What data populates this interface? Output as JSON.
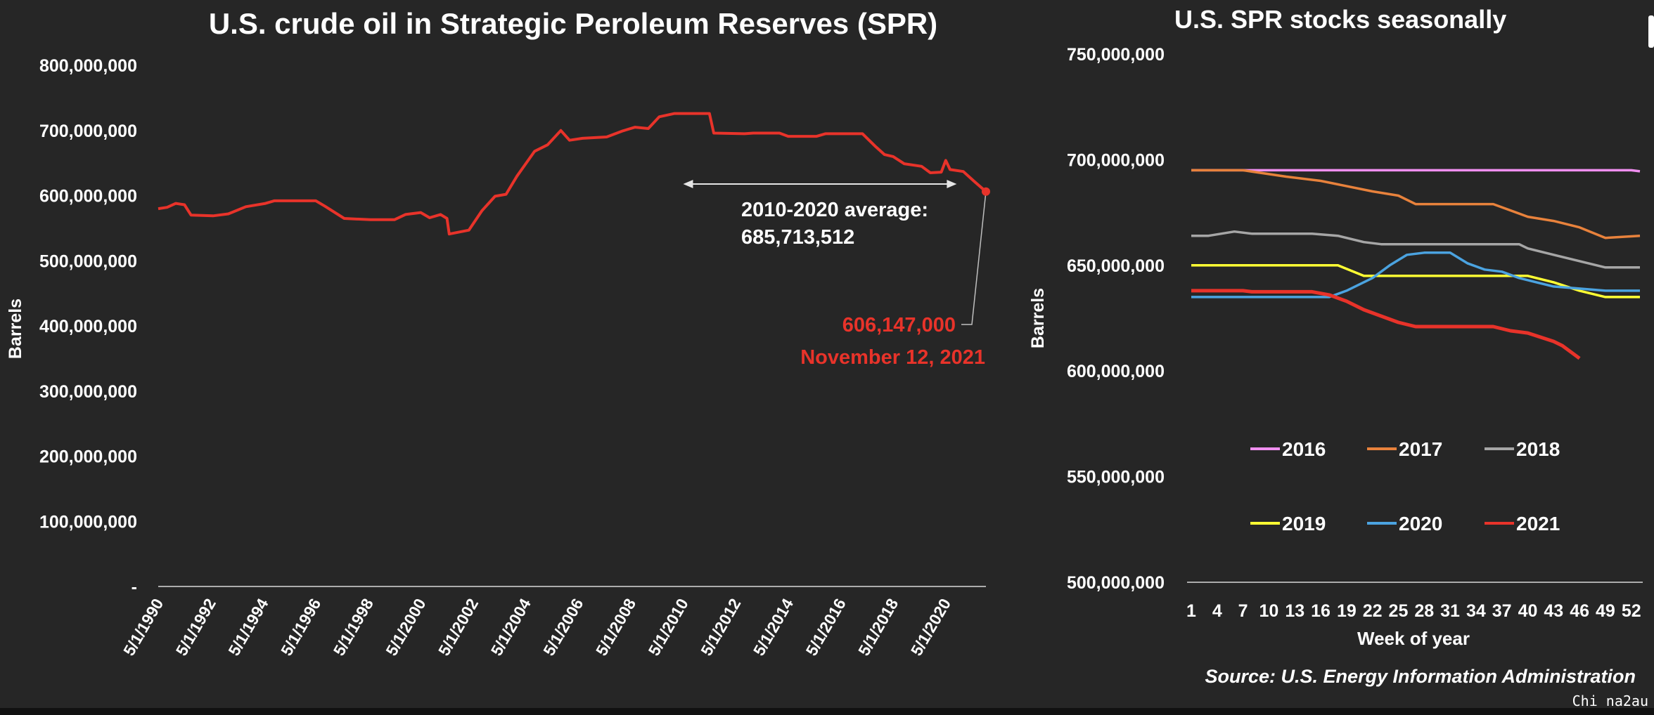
{
  "watermark": "Chi na2au",
  "source_note": "Source: U.S. Energy Information Administration",
  "chart_data": [
    {
      "type": "line",
      "title": "U.S. crude oil in Strategic Peroleum Reserves (SPR)",
      "ylabel": "Barrels",
      "xlabel": "",
      "ylim": [
        0,
        800000000
      ],
      "y_ticks": [
        0,
        100000000,
        200000000,
        300000000,
        400000000,
        500000000,
        600000000,
        700000000,
        800000000
      ],
      "y_tick_labels": [
        "-",
        "100,000,000",
        "200,000,000",
        "300,000,000",
        "400,000,000",
        "500,000,000",
        "600,000,000",
        "700,000,000",
        "800,000,000"
      ],
      "x_range": [
        "1990-05-01",
        "2021-11-12"
      ],
      "x_tick_labels": [
        "5/1/1990",
        "5/1/1992",
        "5/1/1994",
        "5/1/1996",
        "5/1/1998",
        "5/1/2000",
        "5/1/2002",
        "5/1/2004",
        "5/1/2006",
        "5/1/2008",
        "5/1/2010",
        "5/1/2012",
        "5/1/2014",
        "5/1/2016",
        "5/1/2018",
        "5/1/2020"
      ],
      "line_color": "#e8332a",
      "grid": false,
      "series": [
        {
          "color": "#e8332a",
          "points": [
            [
              "1990-05-01",
              580000000
            ],
            [
              "1990-09-01",
              582000000
            ],
            [
              "1991-01-01",
              588000000
            ],
            [
              "1991-05-01",
              586000000
            ],
            [
              "1991-08-01",
              570000000
            ],
            [
              "1992-06-01",
              569000000
            ],
            [
              "1993-01-01",
              572000000
            ],
            [
              "1993-09-01",
              583000000
            ],
            [
              "1994-06-01",
              588000000
            ],
            [
              "1994-10-01",
              592000000
            ],
            [
              "1995-06-01",
              592000000
            ],
            [
              "1996-05-01",
              592000000
            ],
            [
              "1996-09-01",
              584000000
            ],
            [
              "1997-06-01",
              565000000
            ],
            [
              "1998-06-01",
              563000000
            ],
            [
              "1999-05-01",
              563000000
            ],
            [
              "1999-10-01",
              571000000
            ],
            [
              "2000-05-01",
              574000000
            ],
            [
              "2000-09-01",
              566000000
            ],
            [
              "2001-02-01",
              571000000
            ],
            [
              "2001-05-01",
              565000000
            ],
            [
              "2001-06-01",
              541000000
            ],
            [
              "2002-03-01",
              547000000
            ],
            [
              "2002-09-01",
              577000000
            ],
            [
              "2003-03-01",
              599000000
            ],
            [
              "2003-08-01",
              602000000
            ],
            [
              "2004-01-01",
              630000000
            ],
            [
              "2004-09-01",
              668000000
            ],
            [
              "2005-03-01",
              678000000
            ],
            [
              "2005-09-01",
              700000000
            ],
            [
              "2006-01-01",
              685000000
            ],
            [
              "2006-07-01",
              688000000
            ],
            [
              "2007-06-01",
              690000000
            ],
            [
              "2008-01-01",
              699000000
            ],
            [
              "2008-07-01",
              705000000
            ],
            [
              "2009-01-01",
              703000000
            ],
            [
              "2009-06-01",
              721000000
            ],
            [
              "2010-01-01",
              726000000
            ],
            [
              "2011-05-01",
              726000000
            ],
            [
              "2011-07-01",
              696000000
            ],
            [
              "2012-09-01",
              695000000
            ],
            [
              "2013-01-01",
              696000000
            ],
            [
              "2014-01-01",
              696000000
            ],
            [
              "2014-05-01",
              691000000
            ],
            [
              "2015-06-01",
              691000000
            ],
            [
              "2015-10-01",
              695000000
            ],
            [
              "2017-03-01",
              695000000
            ],
            [
              "2017-09-01",
              675000000
            ],
            [
              "2018-01-01",
              663000000
            ],
            [
              "2018-05-01",
              660000000
            ],
            [
              "2018-10-01",
              649000000
            ],
            [
              "2019-06-01",
              645000000
            ],
            [
              "2019-10-01",
              635000000
            ],
            [
              "2020-03-01",
              636000000
            ],
            [
              "2020-05-01",
              654000000
            ],
            [
              "2020-07-01",
              640000000
            ],
            [
              "2021-01-01",
              637000000
            ],
            [
              "2021-06-01",
              622000000
            ],
            [
              "2021-11-12",
              606147000
            ]
          ]
        }
      ],
      "annotations": [
        {
          "text_line1": "2010-2020 average:",
          "text_line2": "685,713,512",
          "value": 685713512,
          "x_from": "2010-05-01",
          "x_to": "2020-10-01",
          "color": "#ffffff"
        },
        {
          "text_line1": "606,147,000",
          "text_line2": "November 12, 2021",
          "value": 606147000,
          "x": "2021-11-12",
          "color": "#e8332a"
        }
      ]
    },
    {
      "type": "line",
      "title": "U.S. SPR stocks seasonally",
      "ylabel": "Barrels",
      "xlabel": "Week of year",
      "ylim": [
        500000000,
        750000000
      ],
      "y_ticks": [
        500000000,
        550000000,
        600000000,
        650000000,
        700000000,
        750000000
      ],
      "y_tick_labels": [
        "500,000,000",
        "550,000,000",
        "600,000,000",
        "650,000,000",
        "700,000,000",
        "750,000,000"
      ],
      "xlim": [
        1,
        53
      ],
      "x_ticks": [
        1,
        4,
        7,
        10,
        13,
        16,
        19,
        22,
        25,
        28,
        31,
        34,
        37,
        40,
        43,
        46,
        49,
        52
      ],
      "grid": false,
      "legend_position": "lower-center",
      "series": [
        {
          "name": "2016",
          "color": "#f08ff0",
          "points": [
            [
              1,
              695000000
            ],
            [
              52,
              695000000
            ],
            [
              53,
              694500000
            ]
          ]
        },
        {
          "name": "2017",
          "color": "#e8823c",
          "points": [
            [
              1,
              695000000
            ],
            [
              7,
              695000000
            ],
            [
              12,
              692000000
            ],
            [
              16,
              690000000
            ],
            [
              22,
              685000000
            ],
            [
              25,
              683000000
            ],
            [
              27,
              679000000
            ],
            [
              36,
              679000000
            ],
            [
              40,
              673000000
            ],
            [
              43,
              671000000
            ],
            [
              46,
              668000000
            ],
            [
              49,
              663000000
            ],
            [
              53,
              664000000
            ]
          ]
        },
        {
          "name": "2018",
          "color": "#a6a6a6",
          "points": [
            [
              1,
              664000000
            ],
            [
              3,
              664000000
            ],
            [
              6,
              666000000
            ],
            [
              8,
              665000000
            ],
            [
              15,
              665000000
            ],
            [
              18,
              664000000
            ],
            [
              21,
              661000000
            ],
            [
              23,
              660000000
            ],
            [
              39,
              660000000
            ],
            [
              40,
              658000000
            ],
            [
              43,
              655000000
            ],
            [
              46,
              652000000
            ],
            [
              49,
              649000000
            ],
            [
              53,
              649000000
            ]
          ]
        },
        {
          "name": "2019",
          "color": "#ffff33",
          "points": [
            [
              1,
              650000000
            ],
            [
              18,
              650000000
            ],
            [
              21,
              645000000
            ],
            [
              40,
              645000000
            ],
            [
              43,
              642000000
            ],
            [
              46,
              638000000
            ],
            [
              49,
              635000000
            ],
            [
              53,
              635000000
            ]
          ]
        },
        {
          "name": "2020",
          "color": "#4ba3e0",
          "points": [
            [
              1,
              635000000
            ],
            [
              17,
              635000000
            ],
            [
              19,
              638000000
            ],
            [
              22,
              644000000
            ],
            [
              24,
              650000000
            ],
            [
              26,
              655000000
            ],
            [
              28,
              656000000
            ],
            [
              31,
              656000000
            ],
            [
              33,
              651000000
            ],
            [
              35,
              648000000
            ],
            [
              37,
              647000000
            ],
            [
              39,
              644000000
            ],
            [
              41,
              642000000
            ],
            [
              43,
              640000000
            ],
            [
              46,
              639000000
            ],
            [
              49,
              638000000
            ],
            [
              53,
              638000000
            ]
          ]
        },
        {
          "name": "2021",
          "color": "#e8332a",
          "points": [
            [
              1,
              638000000
            ],
            [
              7,
              638000000
            ],
            [
              8,
              637500000
            ],
            [
              15,
              637500000
            ],
            [
              17,
              636000000
            ],
            [
              19,
              633000000
            ],
            [
              21,
              629000000
            ],
            [
              23,
              626000000
            ],
            [
              25,
              623000000
            ],
            [
              27,
              621000000
            ],
            [
              36,
              621000000
            ],
            [
              38,
              619000000
            ],
            [
              40,
              618000000
            ],
            [
              43,
              614000000
            ],
            [
              44,
              612000000
            ],
            [
              46,
              606000000
            ]
          ]
        }
      ]
    }
  ]
}
